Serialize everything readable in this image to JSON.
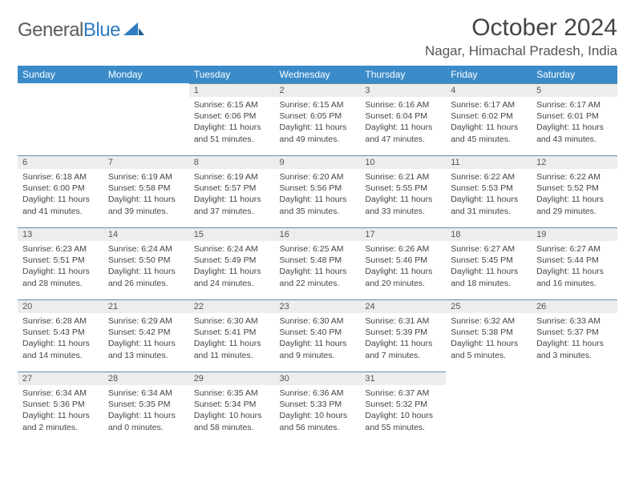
{
  "brand": {
    "part1": "General",
    "part2": "Blue"
  },
  "title": "October 2024",
  "location": "Nagar, Himachal Pradesh, India",
  "colors": {
    "header_bg": "#3b8bc9",
    "header_text": "#ffffff",
    "daynum_bg": "#eceded",
    "daynum_border": "#6a8aa5",
    "page_bg": "#ffffff",
    "text": "#444444",
    "brand_grey": "#5a5a5a",
    "brand_blue": "#2f7bbf"
  },
  "day_headers": [
    "Sunday",
    "Monday",
    "Tuesday",
    "Wednesday",
    "Thursday",
    "Friday",
    "Saturday"
  ],
  "weeks": [
    [
      null,
      null,
      {
        "n": "1",
        "sr": "6:15 AM",
        "ss": "6:06 PM",
        "dl": "11 hours and 51 minutes."
      },
      {
        "n": "2",
        "sr": "6:15 AM",
        "ss": "6:05 PM",
        "dl": "11 hours and 49 minutes."
      },
      {
        "n": "3",
        "sr": "6:16 AM",
        "ss": "6:04 PM",
        "dl": "11 hours and 47 minutes."
      },
      {
        "n": "4",
        "sr": "6:17 AM",
        "ss": "6:02 PM",
        "dl": "11 hours and 45 minutes."
      },
      {
        "n": "5",
        "sr": "6:17 AM",
        "ss": "6:01 PM",
        "dl": "11 hours and 43 minutes."
      }
    ],
    [
      {
        "n": "6",
        "sr": "6:18 AM",
        "ss": "6:00 PM",
        "dl": "11 hours and 41 minutes."
      },
      {
        "n": "7",
        "sr": "6:19 AM",
        "ss": "5:58 PM",
        "dl": "11 hours and 39 minutes."
      },
      {
        "n": "8",
        "sr": "6:19 AM",
        "ss": "5:57 PM",
        "dl": "11 hours and 37 minutes."
      },
      {
        "n": "9",
        "sr": "6:20 AM",
        "ss": "5:56 PM",
        "dl": "11 hours and 35 minutes."
      },
      {
        "n": "10",
        "sr": "6:21 AM",
        "ss": "5:55 PM",
        "dl": "11 hours and 33 minutes."
      },
      {
        "n": "11",
        "sr": "6:22 AM",
        "ss": "5:53 PM",
        "dl": "11 hours and 31 minutes."
      },
      {
        "n": "12",
        "sr": "6:22 AM",
        "ss": "5:52 PM",
        "dl": "11 hours and 29 minutes."
      }
    ],
    [
      {
        "n": "13",
        "sr": "6:23 AM",
        "ss": "5:51 PM",
        "dl": "11 hours and 28 minutes."
      },
      {
        "n": "14",
        "sr": "6:24 AM",
        "ss": "5:50 PM",
        "dl": "11 hours and 26 minutes."
      },
      {
        "n": "15",
        "sr": "6:24 AM",
        "ss": "5:49 PM",
        "dl": "11 hours and 24 minutes."
      },
      {
        "n": "16",
        "sr": "6:25 AM",
        "ss": "5:48 PM",
        "dl": "11 hours and 22 minutes."
      },
      {
        "n": "17",
        "sr": "6:26 AM",
        "ss": "5:46 PM",
        "dl": "11 hours and 20 minutes."
      },
      {
        "n": "18",
        "sr": "6:27 AM",
        "ss": "5:45 PM",
        "dl": "11 hours and 18 minutes."
      },
      {
        "n": "19",
        "sr": "6:27 AM",
        "ss": "5:44 PM",
        "dl": "11 hours and 16 minutes."
      }
    ],
    [
      {
        "n": "20",
        "sr": "6:28 AM",
        "ss": "5:43 PM",
        "dl": "11 hours and 14 minutes."
      },
      {
        "n": "21",
        "sr": "6:29 AM",
        "ss": "5:42 PM",
        "dl": "11 hours and 13 minutes."
      },
      {
        "n": "22",
        "sr": "6:30 AM",
        "ss": "5:41 PM",
        "dl": "11 hours and 11 minutes."
      },
      {
        "n": "23",
        "sr": "6:30 AM",
        "ss": "5:40 PM",
        "dl": "11 hours and 9 minutes."
      },
      {
        "n": "24",
        "sr": "6:31 AM",
        "ss": "5:39 PM",
        "dl": "11 hours and 7 minutes."
      },
      {
        "n": "25",
        "sr": "6:32 AM",
        "ss": "5:38 PM",
        "dl": "11 hours and 5 minutes."
      },
      {
        "n": "26",
        "sr": "6:33 AM",
        "ss": "5:37 PM",
        "dl": "11 hours and 3 minutes."
      }
    ],
    [
      {
        "n": "27",
        "sr": "6:34 AM",
        "ss": "5:36 PM",
        "dl": "11 hours and 2 minutes."
      },
      {
        "n": "28",
        "sr": "6:34 AM",
        "ss": "5:35 PM",
        "dl": "11 hours and 0 minutes."
      },
      {
        "n": "29",
        "sr": "6:35 AM",
        "ss": "5:34 PM",
        "dl": "10 hours and 58 minutes."
      },
      {
        "n": "30",
        "sr": "6:36 AM",
        "ss": "5:33 PM",
        "dl": "10 hours and 56 minutes."
      },
      {
        "n": "31",
        "sr": "6:37 AM",
        "ss": "5:32 PM",
        "dl": "10 hours and 55 minutes."
      },
      null,
      null
    ]
  ],
  "labels": {
    "sunrise": "Sunrise: ",
    "sunset": "Sunset: ",
    "daylight": "Daylight: "
  }
}
